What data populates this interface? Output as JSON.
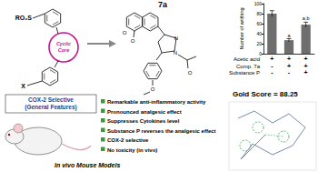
{
  "chart_data": {
    "type": "bar",
    "y_label": "Number of writhing",
    "categories": [
      null,
      null,
      null
    ],
    "values": [
      80,
      27,
      58
    ],
    "errors": [
      6,
      3,
      5
    ],
    "annotations": [
      {
        "index": 1,
        "text": "a"
      },
      {
        "index": 2,
        "text": "a,b"
      }
    ],
    "color": "#6e6e6e",
    "ylim": [
      0,
      100
    ],
    "yticks": [
      0,
      20,
      40,
      60,
      80,
      100
    ],
    "grid": false
  },
  "treatment_table": {
    "rows": [
      {
        "label": "Acetic acid",
        "marks": [
          "+",
          "+",
          "+"
        ]
      },
      {
        "label": "Comp. 7a",
        "marks": [
          "-",
          "+",
          "+"
        ]
      },
      {
        "label": "Substance P",
        "marks": [
          "-",
          "-",
          "+"
        ]
      }
    ]
  },
  "structure": {
    "substituent_top": "RO₂S",
    "core": "Cyclic Core",
    "substituent_bottom": "X",
    "caption": [
      "COX-2 Selective",
      "(General Features)"
    ]
  },
  "compound": {
    "label": "7a",
    "atoms": [
      "O",
      "O",
      "N",
      "N",
      "O",
      "O"
    ]
  },
  "findings": [
    "Remarkable anti-inflammatory activity",
    "Pronounced analgesic effect",
    "Suppresses Cytokines level",
    "Substance P reverses the analgesic effect",
    "COX-2 selective",
    "No toxicity (in vivo)"
  ],
  "model": "In vivo Mouse Models",
  "docking": {
    "text": "Gold Score = 88.25"
  }
}
